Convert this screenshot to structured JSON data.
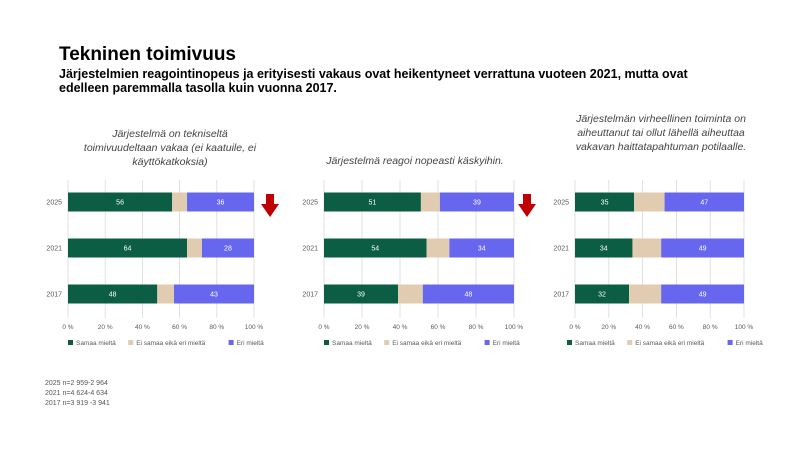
{
  "slide": {
    "title": "Tekninen toimivuus",
    "subtitle": "Järjestelmien reagointinopeus ja erityisesti vakaus ovat heikentyneet verrattuna vuoteen 2021, mutta ovat edelleen paremmalla tasolla kuin vuonna 2017."
  },
  "colors": {
    "agree": "#0b5e43",
    "neutral": "#e2ccb1",
    "disagree": "#6766ee",
    "arrow": "#c00000",
    "grid": "#d9d9d9",
    "axis_text": "#595959"
  },
  "legend": [
    "Samaa mieltä",
    "Ei samaa eikä eri mieltä",
    "Eri mieltä"
  ],
  "footnotes": [
    "2025 n=2 959-2 964",
    "2021 n=4 624-4 634",
    "2017 n=3 919 -3 941"
  ],
  "chart_data": [
    {
      "type": "bar",
      "stacked": true,
      "orientation": "horizontal",
      "title": "Järjestelmä on tekniseltä toimivuudeltaan vakaa (ei kaatuile, ei käyttökatkoksia)",
      "categories": [
        "2025",
        "2021",
        "2017"
      ],
      "series": [
        {
          "name": "Samaa mieltä",
          "values": [
            56,
            64,
            48
          ]
        },
        {
          "name": "Ei samaa eikä eri mieltä",
          "values": [
            8,
            8,
            9
          ]
        },
        {
          "name": "Eri mieltä",
          "values": [
            36,
            28,
            43
          ]
        }
      ],
      "xlim": [
        0,
        100
      ],
      "xticks": [
        "0 %",
        "20 %",
        "40 %",
        "60 %",
        "80 %",
        "100 %"
      ],
      "legend_position": "bottom",
      "grid": true,
      "down_arrow": true
    },
    {
      "type": "bar",
      "stacked": true,
      "orientation": "horizontal",
      "title": "Järjestelmä reagoi nopeasti käskyihin.",
      "categories": [
        "2025",
        "2021",
        "2017"
      ],
      "series": [
        {
          "name": "Samaa mieltä",
          "values": [
            51,
            54,
            39
          ]
        },
        {
          "name": "Ei samaa eikä eri mieltä",
          "values": [
            10,
            12,
            13
          ]
        },
        {
          "name": "Eri mieltä",
          "values": [
            39,
            34,
            48
          ]
        }
      ],
      "xlim": [
        0,
        100
      ],
      "xticks": [
        "0 %",
        "20 %",
        "40 %",
        "60 %",
        "80 %",
        "100 %"
      ],
      "legend_position": "bottom",
      "grid": true,
      "down_arrow": true
    },
    {
      "type": "bar",
      "stacked": true,
      "orientation": "horizontal",
      "title": "Järjestelmän virheellinen toiminta on aiheuttanut tai ollut lähellä aiheuttaa vakavan haittatapahtuman potilaalle.",
      "categories": [
        "2025",
        "2021",
        "2017"
      ],
      "series": [
        {
          "name": "Samaa mieltä",
          "values": [
            35,
            34,
            32
          ]
        },
        {
          "name": "Ei samaa eikä eri mieltä",
          "values": [
            18,
            17,
            19
          ]
        },
        {
          "name": "Eri mieltä",
          "values": [
            47,
            49,
            49
          ]
        }
      ],
      "xlim": [
        0,
        100
      ],
      "xticks": [
        "0 %",
        "20 %",
        "40 %",
        "60 %",
        "80 %",
        "100 %"
      ],
      "legend_position": "bottom",
      "grid": true,
      "down_arrow": false
    }
  ]
}
